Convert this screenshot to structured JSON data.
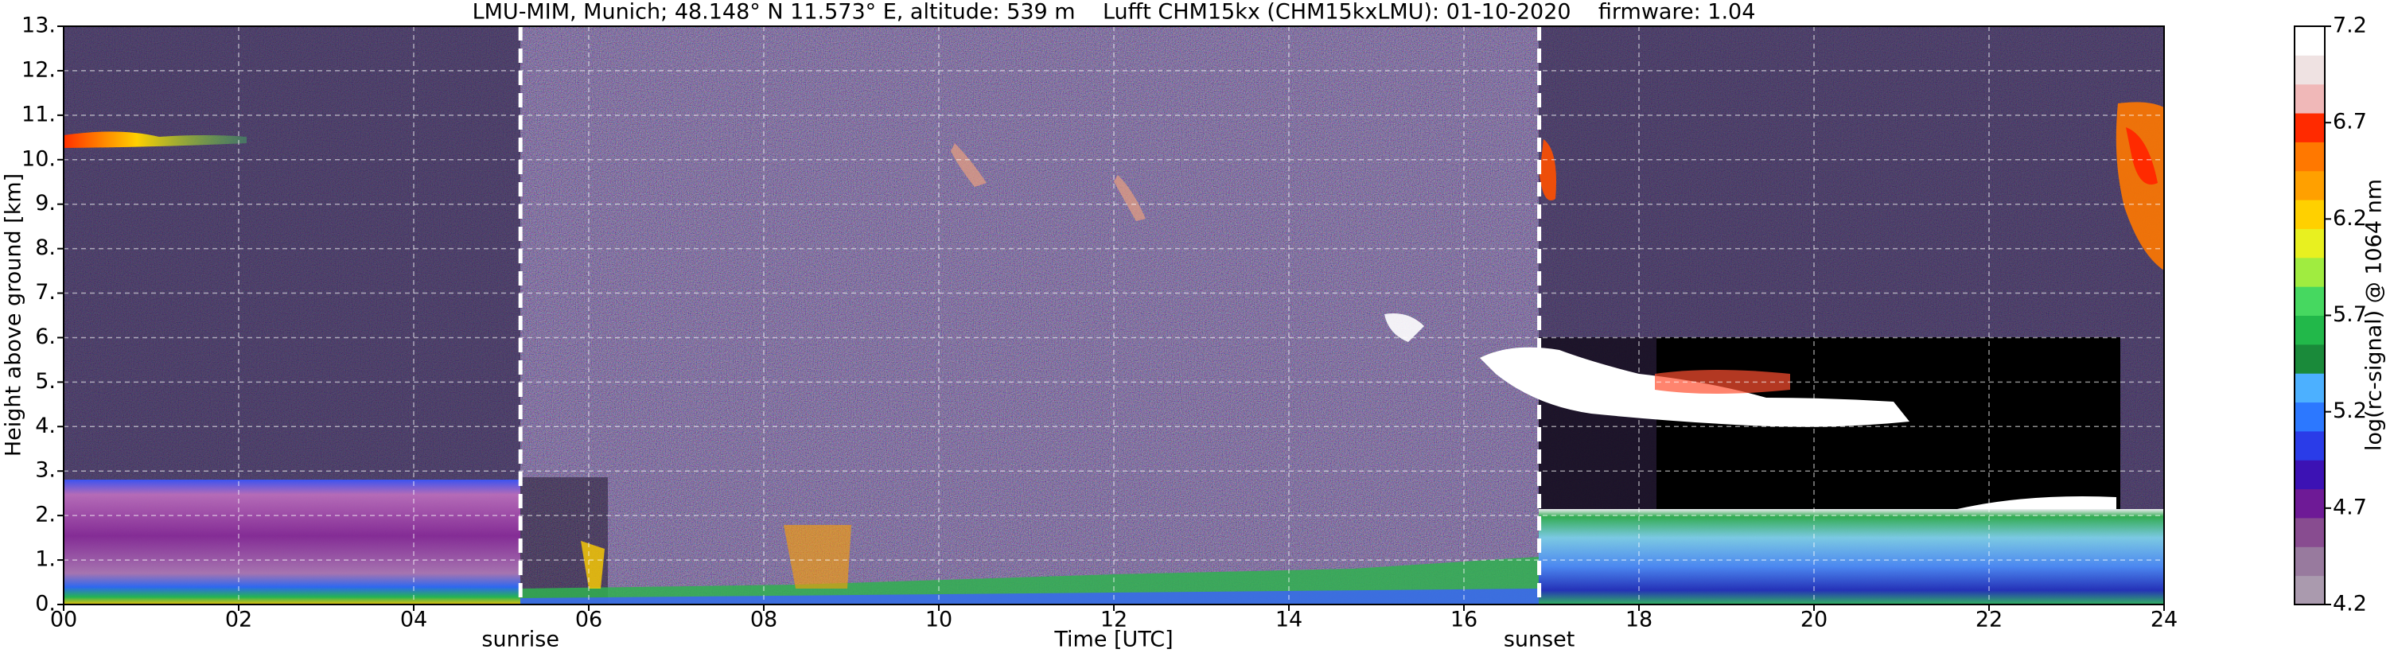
{
  "chart_data": {
    "type": "heatmap",
    "title": "LMU-MIM, Munich; 48.148° N 11.573° E, altitude: 539 m    Lufft CHM15kx (CHM15kxLMU): 01-10-2020    firmware: 1.04",
    "xlabel": "Time [UTC]",
    "ylabel": "Height above ground [km]",
    "xlim": [
      0,
      24
    ],
    "xticks": [
      {
        "value": 0,
        "label": "00"
      },
      {
        "value": 2,
        "label": "02"
      },
      {
        "value": 4,
        "label": "04"
      },
      {
        "value": 6,
        "label": "06"
      },
      {
        "value": 8,
        "label": "08"
      },
      10,
      12,
      14,
      16,
      18,
      20,
      22,
      24
    ],
    "ylim": [
      0,
      13
    ],
    "yticks": [
      {
        "value": 0,
        "label": "0."
      },
      {
        "value": 1,
        "label": "1."
      },
      {
        "value": 2,
        "label": "2."
      },
      {
        "value": 3,
        "label": "3."
      },
      {
        "value": 4,
        "label": "4."
      },
      {
        "value": 5,
        "label": "5."
      },
      {
        "value": 6,
        "label": "6."
      },
      {
        "value": 7,
        "label": "7."
      },
      {
        "value": 8,
        "label": "8."
      },
      {
        "value": 9,
        "label": "9."
      },
      {
        "value": 10,
        "label": "10."
      },
      {
        "value": 11,
        "label": "11."
      },
      {
        "value": 12,
        "label": "12."
      },
      {
        "value": 13,
        "label": "13."
      }
    ],
    "grid": true,
    "events": [
      {
        "label": "sunrise",
        "x": 5.22
      },
      {
        "label": "sunset",
        "x": 16.86
      }
    ],
    "colorbar": {
      "label": "log(rc-signal) @ 1064 nm",
      "lim": [
        4.2,
        7.2
      ],
      "ticks": [
        4.2,
        4.7,
        5.2,
        5.7,
        6.2,
        6.7,
        7.2
      ],
      "colors": [
        "#aa9aae",
        "#987a9e",
        "#884c90",
        "#6e1a96",
        "#3c12b4",
        "#2a3ce8",
        "#2c78ff",
        "#4cb0ff",
        "#1a8a3a",
        "#22b84a",
        "#46d860",
        "#a0ec40",
        "#e8f020",
        "#ffd000",
        "#ffa000",
        "#ff7800",
        "#ff2a00",
        "#f0b8b8",
        "#efe2e2",
        "#ffffff"
      ]
    }
  }
}
